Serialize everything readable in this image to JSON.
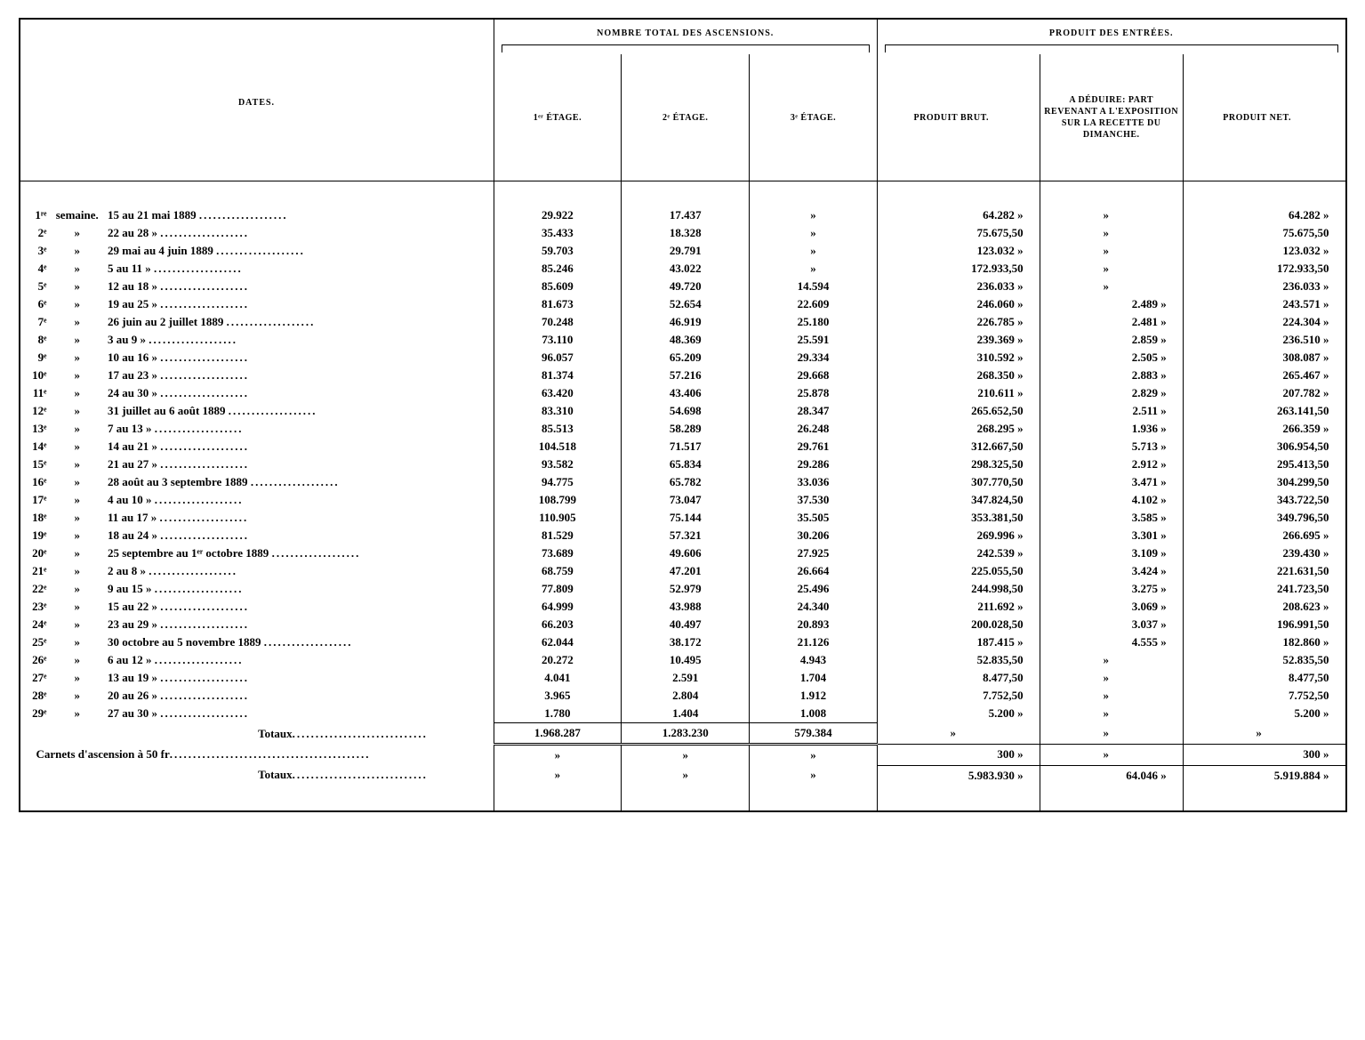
{
  "headers": {
    "dates": "DATES.",
    "group_ascensions": "NOMBRE TOTAL DES ASCENSIONS.",
    "group_produit": "PRODUIT DES ENTRÉES.",
    "etage1": "1ᵉʳ ÉTAGE.",
    "etage2": "2ᵉ ÉTAGE.",
    "etage3": "3ᵉ ÉTAGE.",
    "produit_brut": "PRODUIT BRUT.",
    "a_deduire": "A DÉDUIRE: PART REVENANT A L'EXPOSITION SUR LA RECETTE DU DIMANCHE.",
    "produit_net": "PRODUIT NET."
  },
  "week_label_first": "semaine.",
  "week_label_ditto": "»",
  "dots": "...................",
  "rows": [
    {
      "n": "1ʳᵉ",
      "date": "15 au 21 mai 1889",
      "e1": "29.922",
      "e2": "17.437",
      "e3": "»",
      "brut": "64.282  »",
      "ded": "»",
      "net": "64.282  »"
    },
    {
      "n": "2ᵉ",
      "date": "22 au 28       »",
      "e1": "35.433",
      "e2": "18.328",
      "e3": "»",
      "brut": "75.675,50",
      "ded": "»",
      "net": "75.675,50"
    },
    {
      "n": "3ᵉ",
      "date": "29 mai au 4 juin 1889",
      "e1": "59.703",
      "e2": "29.791",
      "e3": "»",
      "brut": "123.032  »",
      "ded": "»",
      "net": "123.032  »"
    },
    {
      "n": "4ᵉ",
      "date": "5 au 11       »",
      "e1": "85.246",
      "e2": "43.022",
      "e3": "»",
      "brut": "172.933,50",
      "ded": "»",
      "net": "172.933,50"
    },
    {
      "n": "5ᵉ",
      "date": "12 au 18       »",
      "e1": "85.609",
      "e2": "49.720",
      "e3": "14.594",
      "brut": "236.033  »",
      "ded": "»",
      "net": "236.033  »"
    },
    {
      "n": "6ᵉ",
      "date": "19 au 25       »",
      "e1": "81.673",
      "e2": "52.654",
      "e3": "22.609",
      "brut": "246.060  »",
      "ded": "2.489  »",
      "net": "243.571  »"
    },
    {
      "n": "7ᵉ",
      "date": "26 juin au  2 juillet 1889",
      "e1": "70.248",
      "e2": "46.919",
      "e3": "25.180",
      "brut": "226.785  »",
      "ded": "2.481  »",
      "net": "224.304  »"
    },
    {
      "n": "8ᵉ",
      "date": "3 au  9        »",
      "e1": "73.110",
      "e2": "48.369",
      "e3": "25.591",
      "brut": "239.369  »",
      "ded": "2.859  »",
      "net": "236.510  »"
    },
    {
      "n": "9ᵉ",
      "date": "10 au 16        »",
      "e1": "96.057",
      "e2": "65.209",
      "e3": "29.334",
      "brut": "310.592  »",
      "ded": "2.505  »",
      "net": "308.087  »"
    },
    {
      "n": "10ᵉ",
      "date": "17 au 23        »",
      "e1": "81.374",
      "e2": "57.216",
      "e3": "29.668",
      "brut": "268.350  »",
      "ded": "2.883  »",
      "net": "265.467  »"
    },
    {
      "n": "11ᵉ",
      "date": "24 au 30        »",
      "e1": "63.420",
      "e2": "43.406",
      "e3": "25.878",
      "brut": "210.611  »",
      "ded": "2.829  »",
      "net": "207.782  »"
    },
    {
      "n": "12ᵉ",
      "date": "31 juillet au 6 août 1889",
      "e1": "83.310",
      "e2": "54.698",
      "e3": "28.347",
      "brut": "265.652,50",
      "ded": "2.511  »",
      "net": "263.141,50"
    },
    {
      "n": "13ᵉ",
      "date": "7 au 13        »",
      "e1": "85.513",
      "e2": "58.289",
      "e3": "26.248",
      "brut": "268.295  »",
      "ded": "1.936  »",
      "net": "266.359  »"
    },
    {
      "n": "14ᵉ",
      "date": "14 au 21        »",
      "e1": "104.518",
      "e2": "71.517",
      "e3": "29.761",
      "brut": "312.667,50",
      "ded": "5.713  »",
      "net": "306.954,50"
    },
    {
      "n": "15ᵉ",
      "date": "21 au 27        »",
      "e1": "93.582",
      "e2": "65.834",
      "e3": "29.286",
      "brut": "298.325,50",
      "ded": "2.912  »",
      "net": "295.413,50"
    },
    {
      "n": "16ᵉ",
      "date": "28 août au 3 septembre 1889",
      "e1": "94.775",
      "e2": "65.782",
      "e3": "33.036",
      "brut": "307.770,50",
      "ded": "3.471  »",
      "net": "304.299,50"
    },
    {
      "n": "17ᵉ",
      "date": "4 au 10        »",
      "e1": "108.799",
      "e2": "73.047",
      "e3": "37.530",
      "brut": "347.824,50",
      "ded": "4.102  »",
      "net": "343.722,50"
    },
    {
      "n": "18ᵉ",
      "date": "11 au 17        »",
      "e1": "110.905",
      "e2": "75.144",
      "e3": "35.505",
      "brut": "353.381,50",
      "ded": "3.585  »",
      "net": "349.796,50"
    },
    {
      "n": "19ᵉ",
      "date": "18 au 24        »",
      "e1": "81.529",
      "e2": "57.321",
      "e3": "30.206",
      "brut": "269.996  »",
      "ded": "3.301  »",
      "net": "266.695  »"
    },
    {
      "n": "20ᵉ",
      "date": "25 septembre au 1ᵉʳ octobre 1889",
      "e1": "73.689",
      "e2": "49.606",
      "e3": "27.925",
      "brut": "242.539  »",
      "ded": "3.109  »",
      "net": "239.430  »"
    },
    {
      "n": "21ᵉ",
      "date": "2 au 8        »",
      "e1": "68.759",
      "e2": "47.201",
      "e3": "26.664",
      "brut": "225.055,50",
      "ded": "3.424  »",
      "net": "221.631,50"
    },
    {
      "n": "22ᵉ",
      "date": "9 au 15        »",
      "e1": "77.809",
      "e2": "52.979",
      "e3": "25.496",
      "brut": "244.998,50",
      "ded": "3.275  »",
      "net": "241.723,50"
    },
    {
      "n": "23ᵉ",
      "date": "15 au 22        »",
      "e1": "64.999",
      "e2": "43.988",
      "e3": "24.340",
      "brut": "211.692  »",
      "ded": "3.069  »",
      "net": "208.623  »"
    },
    {
      "n": "24ᵉ",
      "date": "23 au 29        »",
      "e1": "66.203",
      "e2": "40.497",
      "e3": "20.893",
      "brut": "200.028,50",
      "ded": "3.037  »",
      "net": "196.991,50"
    },
    {
      "n": "25ᵉ",
      "date": "30 octobre au 5 novembre 1889",
      "e1": "62.044",
      "e2": "38.172",
      "e3": "21.126",
      "brut": "187.415  »",
      "ded": "4.555  »",
      "net": "182.860  »"
    },
    {
      "n": "26ᵉ",
      "date": "6 au 12        »",
      "e1": "20.272",
      "e2": "10.495",
      "e3": "4.943",
      "brut": "52.835,50",
      "ded": "»",
      "net": "52.835,50"
    },
    {
      "n": "27ᵉ",
      "date": "13 au 19        »",
      "e1": "4.041",
      "e2": "2.591",
      "e3": "1.704",
      "brut": "8.477,50",
      "ded": "»",
      "net": "8.477,50"
    },
    {
      "n": "28ᵉ",
      "date": "20 au 26        »",
      "e1": "3.965",
      "e2": "2.804",
      "e3": "1.912",
      "brut": "7.752,50",
      "ded": "»",
      "net": "7.752,50"
    },
    {
      "n": "29ᵉ",
      "date": "27 au 30        »",
      "e1": "1.780",
      "e2": "1.404",
      "e3": "1.008",
      "brut": "5.200  »",
      "ded": "»",
      "net": "5.200  »"
    }
  ],
  "totals1": {
    "label": "Totaux",
    "e1": "1.968.287",
    "e2": "1.283.230",
    "e3": "579.384",
    "brut": "»",
    "ded": "»",
    "net": "»"
  },
  "carnets": {
    "label": "Carnets d'ascension à 50 fr",
    "e1": "»",
    "e2": "»",
    "e3": "»",
    "brut": "300  »",
    "ded": "»",
    "net": "300  »"
  },
  "totals2": {
    "label": "Totaux",
    "e1": "»",
    "e2": "»",
    "e3": "»",
    "brut": "5.983.930  »",
    "ded": "64.046  »",
    "net": "5.919.884  »"
  }
}
